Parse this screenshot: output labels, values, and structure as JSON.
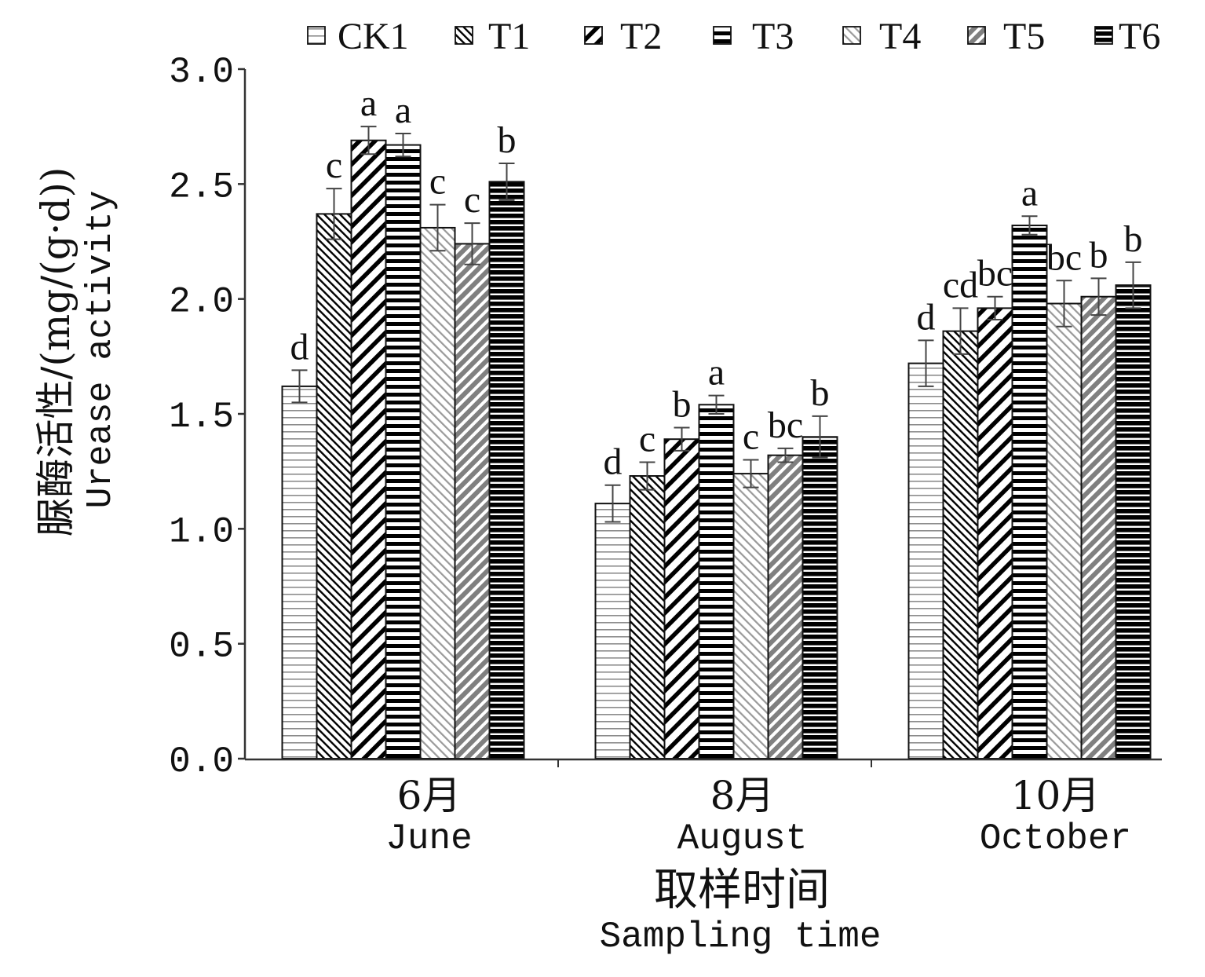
{
  "chart_data": {
    "type": "bar",
    "categories": [
      "June",
      "August",
      "October"
    ],
    "categories_zh": [
      "6月",
      "8月",
      "10月"
    ],
    "series": [
      {
        "name": "CK1",
        "color": "#8c8c8c",
        "values": [
          1.62,
          1.11,
          1.72
        ],
        "errors": [
          0.07,
          0.08,
          0.1
        ],
        "labels": [
          "d",
          "d",
          "d"
        ]
      },
      {
        "name": "T1",
        "color": "#000000",
        "values": [
          2.37,
          1.23,
          1.86
        ],
        "errors": [
          0.11,
          0.06,
          0.1
        ],
        "labels": [
          "c",
          "c",
          "cd"
        ]
      },
      {
        "name": "T2",
        "color": "#000000",
        "values": [
          2.69,
          1.39,
          1.96
        ],
        "errors": [
          0.06,
          0.05,
          0.05
        ],
        "labels": [
          "a",
          "b",
          "bc"
        ]
      },
      {
        "name": "T3",
        "color": "#000000",
        "values": [
          2.67,
          1.54,
          2.32
        ],
        "errors": [
          0.05,
          0.04,
          0.04
        ],
        "labels": [
          "a",
          "a",
          "a"
        ]
      },
      {
        "name": "T4",
        "color": "#9a9a9a",
        "values": [
          2.31,
          1.24,
          1.98
        ],
        "errors": [
          0.1,
          0.06,
          0.1
        ],
        "labels": [
          "c",
          "c",
          "bc"
        ]
      },
      {
        "name": "T5",
        "color": "#808080",
        "values": [
          2.24,
          1.32,
          2.01
        ],
        "errors": [
          0.09,
          0.03,
          0.08
        ],
        "labels": [
          "c",
          "bc",
          "b"
        ]
      },
      {
        "name": "T6",
        "color": "#000000",
        "values": [
          2.51,
          1.4,
          2.06
        ],
        "errors": [
          0.08,
          0.09,
          0.1
        ],
        "labels": [
          "b",
          "b",
          "b"
        ]
      }
    ],
    "xlabel": "Sampling time",
    "xlabel_zh": "取样时间",
    "ylabel": "Urease activity",
    "ylabel_zh": "脲酶活性/(mg/(g·d))",
    "ylim": [
      0,
      3.0
    ],
    "yticks": [
      0,
      0.5,
      1.0,
      1.5,
      2.0,
      2.5,
      3.0
    ],
    "ytick_labels": [
      "0.0",
      "0.5",
      "1.0",
      "1.5",
      "2.0",
      "2.5",
      "3.0"
    ],
    "legend_position": "top",
    "grid": false
  }
}
